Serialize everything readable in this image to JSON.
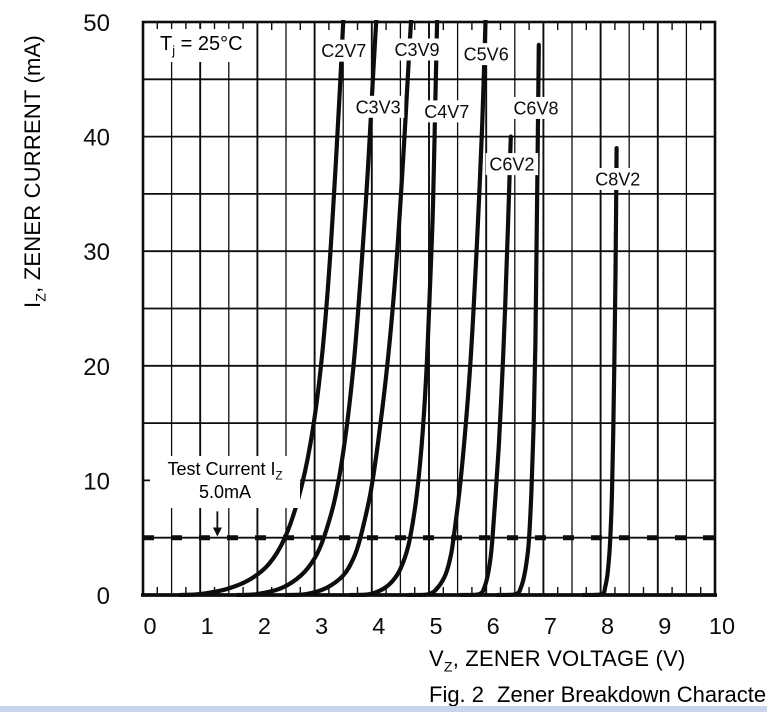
{
  "page": {
    "background": "#ffffff",
    "bottom_strip_color": "#c8d4ec",
    "ink": "#0d0d0d"
  },
  "chart_data": {
    "type": "line",
    "caption_fig": "Fig. 2",
    "caption_text": "Zener Breakdown Characteristics",
    "xlabel": {
      "pre": "V",
      "sub": "Z",
      "post": ", ZENER VOLTAGE (V)"
    },
    "ylabel": {
      "pre": "I",
      "sub": "Z",
      "post": ", ZENER CURRENT (mA)"
    },
    "xlim": [
      0,
      10
    ],
    "ylim": [
      0,
      50
    ],
    "x_major_ticks": [
      0,
      1,
      2,
      3,
      4,
      5,
      6,
      7,
      8,
      9,
      10
    ],
    "y_major_ticks": [
      0,
      10,
      20,
      30,
      40,
      50
    ],
    "x_grid_minor_step": 0.5,
    "x_tick_minor_step": 0.25,
    "y_grid_step": 5,
    "grid": true,
    "legend_position": "none",
    "annotations": {
      "junction_temp": {
        "pre": "T",
        "sub": "j",
        "post": " = 25°C"
      },
      "test_current_line1": {
        "pre": "Test Current I",
        "sub": "Z",
        "post": ""
      },
      "test_current_line2": "5.0mA",
      "test_current_mA": 5,
      "arrow": {
        "v": 1.3,
        "from_mA": 7.3,
        "to_mA": 5.1
      }
    },
    "series": [
      {
        "name": "C2V7",
        "label_at": {
          "v": 3.51,
          "i": 47.5
        },
        "points": [
          [
            0.65,
            0
          ],
          [
            1.0,
            0.08
          ],
          [
            1.45,
            0.5
          ],
          [
            1.85,
            1.3
          ],
          [
            2.2,
            2.7
          ],
          [
            2.48,
            5
          ],
          [
            2.72,
            8.5
          ],
          [
            2.92,
            13
          ],
          [
            3.09,
            19
          ],
          [
            3.22,
            26
          ],
          [
            3.34,
            35
          ],
          [
            3.44,
            44
          ],
          [
            3.52,
            52
          ]
        ]
      },
      {
        "name": "C3V3",
        "label_at": {
          "v": 4.11,
          "i": 42.6
        },
        "points": [
          [
            1.65,
            0
          ],
          [
            2.0,
            0.08
          ],
          [
            2.42,
            0.6
          ],
          [
            2.76,
            1.7
          ],
          [
            3.0,
            3.2
          ],
          [
            3.16,
            5
          ],
          [
            3.36,
            8.5
          ],
          [
            3.53,
            13.5
          ],
          [
            3.68,
            20
          ],
          [
            3.81,
            28
          ],
          [
            3.93,
            37
          ],
          [
            4.03,
            46
          ],
          [
            4.1,
            52
          ]
        ]
      },
      {
        "name": "C3V9",
        "label_at": {
          "v": 4.79,
          "i": 47.6
        },
        "points": [
          [
            2.5,
            0
          ],
          [
            2.85,
            0.08
          ],
          [
            3.2,
            0.6
          ],
          [
            3.5,
            1.7
          ],
          [
            3.68,
            3.2
          ],
          [
            3.8,
            5
          ],
          [
            3.98,
            9
          ],
          [
            4.14,
            14.5
          ],
          [
            4.29,
            21
          ],
          [
            4.43,
            29
          ],
          [
            4.56,
            39
          ],
          [
            4.66,
            48
          ],
          [
            4.71,
            52
          ]
        ]
      },
      {
        "name": "C4V7",
        "label_at": {
          "v": 5.31,
          "i": 42.2
        },
        "points": [
          [
            3.62,
            0
          ],
          [
            3.97,
            0.08
          ],
          [
            4.25,
            0.7
          ],
          [
            4.45,
            1.8
          ],
          [
            4.58,
            3.3
          ],
          [
            4.67,
            5
          ],
          [
            4.78,
            8.5
          ],
          [
            4.87,
            13
          ],
          [
            4.95,
            19
          ],
          [
            5.01,
            26
          ],
          [
            5.07,
            34
          ],
          [
            5.11,
            43
          ],
          [
            5.15,
            52
          ]
        ]
      },
      {
        "name": "C5V6",
        "label_at": {
          "v": 6.0,
          "i": 47.2
        },
        "points": [
          [
            4.65,
            0
          ],
          [
            5.0,
            0.08
          ],
          [
            5.16,
            0.7
          ],
          [
            5.29,
            1.8
          ],
          [
            5.38,
            3.4
          ],
          [
            5.43,
            5
          ],
          [
            5.52,
            8.5
          ],
          [
            5.61,
            13
          ],
          [
            5.7,
            18.5
          ],
          [
            5.78,
            25
          ],
          [
            5.86,
            33
          ],
          [
            5.93,
            41
          ],
          [
            6.0,
            52
          ]
        ]
      },
      {
        "name": "C6V2",
        "label_at": {
          "v": 6.45,
          "i": 37.6
        },
        "points": [
          [
            5.55,
            0
          ],
          [
            5.88,
            0.08
          ],
          [
            5.97,
            0.7
          ],
          [
            6.03,
            1.8
          ],
          [
            6.08,
            3.4
          ],
          [
            6.11,
            5
          ],
          [
            6.16,
            8.5
          ],
          [
            6.22,
            13
          ],
          [
            6.28,
            19
          ],
          [
            6.33,
            25
          ],
          [
            6.38,
            32
          ],
          [
            6.43,
            40
          ]
        ]
      },
      {
        "name": "C6V8",
        "label_at": {
          "v": 6.87,
          "i": 42.5
        },
        "points": [
          [
            6.2,
            0
          ],
          [
            6.52,
            0.08
          ],
          [
            6.61,
            0.7
          ],
          [
            6.67,
            1.8
          ],
          [
            6.72,
            3.4
          ],
          [
            6.75,
            5
          ],
          [
            6.79,
            9
          ],
          [
            6.83,
            15
          ],
          [
            6.86,
            22
          ],
          [
            6.88,
            30
          ],
          [
            6.9,
            39
          ],
          [
            6.92,
            48
          ]
        ]
      },
      {
        "name": "C6V8_note",
        "hidden": true
      },
      {
        "name": "C8V2",
        "label_at": {
          "v": 8.3,
          "i": 36.3
        },
        "points": [
          [
            7.7,
            0
          ],
          [
            8.02,
            0.08
          ],
          [
            8.08,
            0.7
          ],
          [
            8.12,
            1.8
          ],
          [
            8.15,
            3.4
          ],
          [
            8.17,
            5
          ],
          [
            8.2,
            9
          ],
          [
            8.22,
            14
          ],
          [
            8.24,
            20
          ],
          [
            8.26,
            28
          ],
          [
            8.28,
            39
          ]
        ]
      }
    ]
  }
}
